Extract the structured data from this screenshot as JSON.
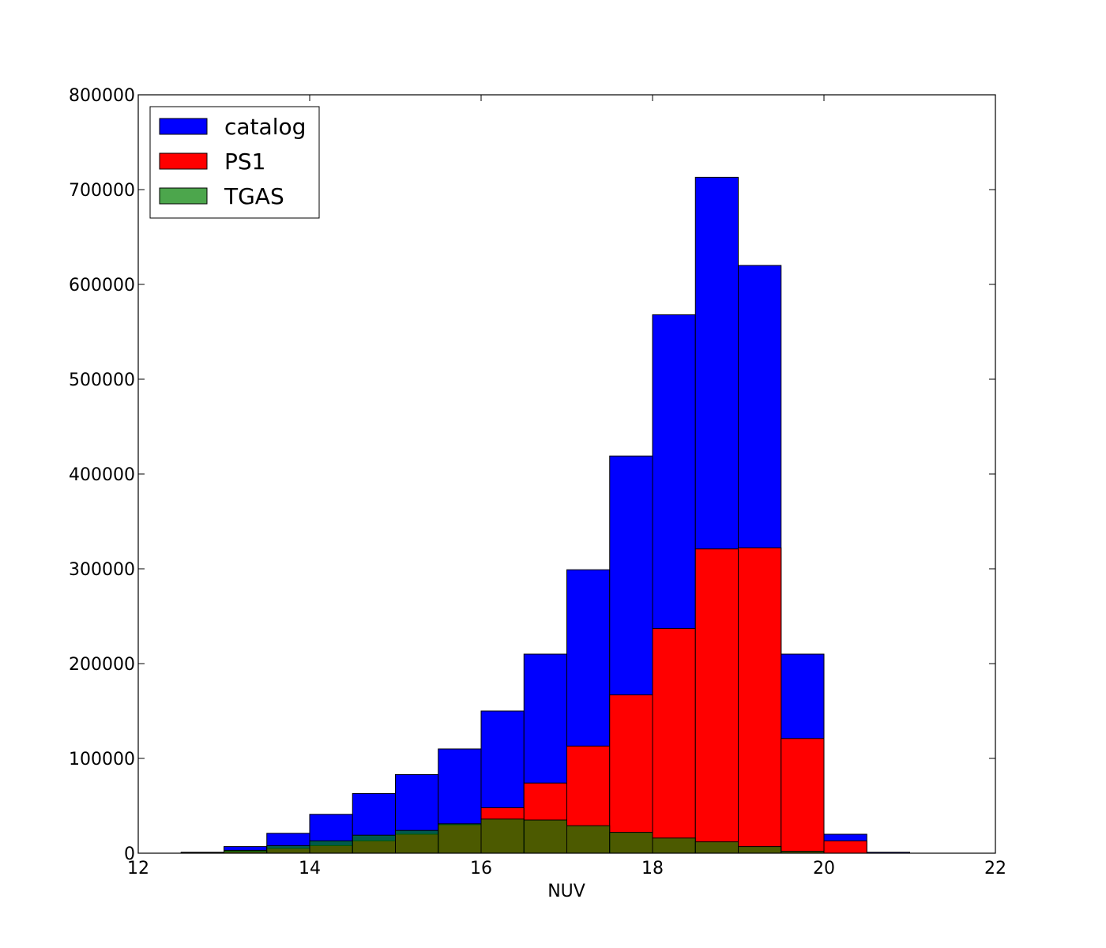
{
  "chart_data": {
    "type": "bar",
    "xlabel": "NUV",
    "ylabel": "",
    "title": "",
    "xlim": [
      12,
      22
    ],
    "ylim": [
      0,
      800000
    ],
    "xticks": [
      "12",
      "14",
      "16",
      "18",
      "20",
      "22"
    ],
    "yticks": [
      "0",
      "100000",
      "200000",
      "300000",
      "400000",
      "500000",
      "600000",
      "700000",
      "800000"
    ],
    "bin_width": 0.5,
    "bin_starts": [
      12.5,
      13.0,
      13.5,
      14.0,
      14.5,
      15.0,
      15.5,
      16.0,
      16.5,
      17.0,
      17.5,
      18.0,
      18.5,
      19.0,
      19.5,
      20.0,
      20.5
    ],
    "legend_position": "top-left",
    "series": [
      {
        "name": "catalog",
        "color": "#0000ff",
        "values": [
          1000,
          7000,
          21000,
          41000,
          63000,
          83000,
          110000,
          150000,
          210000,
          299000,
          419000,
          568000,
          713000,
          620000,
          210000,
          20000,
          1000
        ]
      },
      {
        "name": "PS1",
        "color": "#ff0000",
        "values": [
          0,
          2000,
          5000,
          8000,
          13000,
          20000,
          30000,
          48000,
          74000,
          113000,
          167000,
          237000,
          321000,
          322000,
          121000,
          13000,
          0
        ]
      },
      {
        "name": "TGAS",
        "color": "#008000",
        "values": [
          500,
          3000,
          8000,
          13000,
          19000,
          24000,
          31000,
          36000,
          35000,
          29000,
          22000,
          16000,
          12000,
          7000,
          2000,
          0,
          0
        ]
      }
    ]
  }
}
